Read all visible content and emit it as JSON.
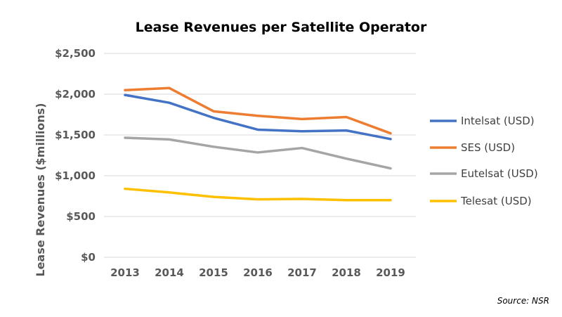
{
  "chart_data": {
    "type": "line",
    "title": "Lease Revenues per Satellite Operator",
    "xlabel": "",
    "ylabel": "Lease Revenues ($millions)",
    "categories": [
      "2013",
      "2014",
      "2015",
      "2016",
      "2017",
      "2018",
      "2019"
    ],
    "ylim": [
      0,
      2500
    ],
    "yticks": [
      0,
      500,
      1000,
      1500,
      2000,
      2500
    ],
    "ytick_labels": [
      "$0",
      "$500",
      "$1,000",
      "$1,500",
      "$2,000",
      "$2,500"
    ],
    "grid": true,
    "legend_position": "right",
    "series": [
      {
        "name": "Intelsat (USD)",
        "color": "#4472c4",
        "values": [
          1990,
          1895,
          1710,
          1565,
          1545,
          1555,
          1450
        ]
      },
      {
        "name": "SES (USD)",
        "color": "#ed7d31",
        "values": [
          2050,
          2075,
          1790,
          1735,
          1695,
          1720,
          1520
        ]
      },
      {
        "name": "Eutelsat (USD)",
        "color": "#a5a5a5",
        "values": [
          1465,
          1445,
          1355,
          1285,
          1340,
          1210,
          1090
        ]
      },
      {
        "name": "Telesat (USD)",
        "color": "#ffc000",
        "values": [
          840,
          795,
          740,
          710,
          715,
          700,
          700
        ]
      }
    ],
    "source": "Source: NSR"
  }
}
